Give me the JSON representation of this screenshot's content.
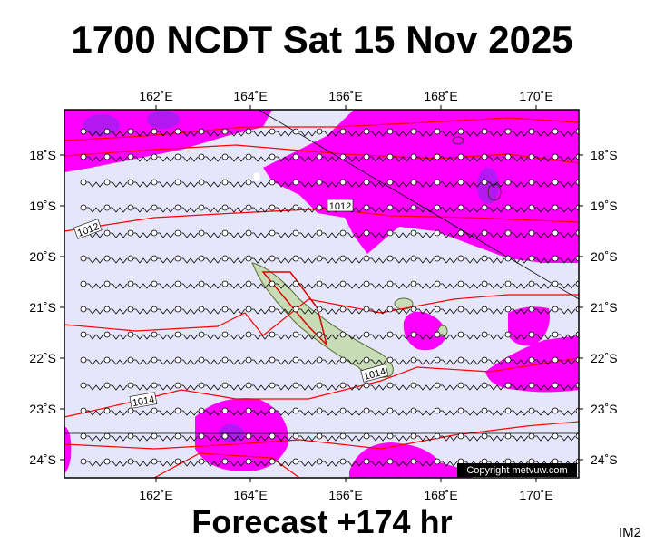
{
  "title": "1700 NCDT Sat 15 Nov 2025",
  "footer": "Forecast +174 hr",
  "corner_label": "IM2",
  "copyright": "Copyright metvuw.com",
  "map": {
    "lon_labels": [
      "162˚E",
      "164˚E",
      "166˚E",
      "168˚E",
      "170˚E"
    ],
    "lat_labels": [
      "18˚S",
      "19˚S",
      "20˚S",
      "21˚S",
      "22˚S",
      "23˚S",
      "24˚S"
    ],
    "isobar_labels": [
      "1012",
      "1012",
      "1014",
      "1014"
    ]
  }
}
